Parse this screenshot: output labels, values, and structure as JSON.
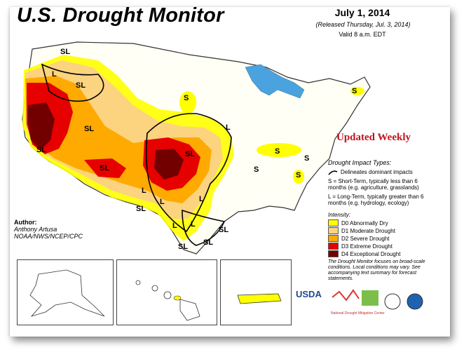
{
  "title": "U.S. Drought Monitor",
  "date": "July 1, 2014",
  "released": "(Released Thursday, Jul. 3, 2014)",
  "valid": "Valid 8 a.m. EDT",
  "updated": "Updated Weekly",
  "author": {
    "label": "Author:",
    "name": "Anthony Artusa",
    "org": "NOAA/NWS/NCEP/CPC"
  },
  "impact": {
    "heading": "Drought Impact Types:",
    "line": "Delineates dominant impacts",
    "short": "S = Short-Term, typically less than 6 months (e.g. agriculture, grasslands)",
    "long": "L = Long-Term, typically greater than 6 months (e.g. hydrology, ecology)"
  },
  "intensity": {
    "heading": "Intensity:",
    "items": [
      {
        "label": "D0 Abnormally Dry",
        "color": "#ffff00"
      },
      {
        "label": "D1 Moderate Drought",
        "color": "#fcd37f"
      },
      {
        "label": "D2 Severe Drought",
        "color": "#ffaa00"
      },
      {
        "label": "D3 Extreme Drought",
        "color": "#e60000"
      },
      {
        "label": "D4 Exceptional Drought",
        "color": "#730000"
      }
    ]
  },
  "note": "The Drought Monitor focuses on broad-scale conditions. Local conditions may vary. See accompanying text summary for forecast statements.",
  "map_labels": [
    "SL",
    "L",
    "SL",
    "SL",
    "S",
    "SL",
    "L",
    "SL",
    "SL",
    "L",
    "SL",
    "L",
    "L",
    "L",
    "SL",
    "SL",
    "SL",
    "L",
    "S",
    "S",
    "S",
    "S",
    "S",
    "L"
  ],
  "logos": {
    "usda": "USDA",
    "ndmc": "National Drought Mitigation Center"
  }
}
